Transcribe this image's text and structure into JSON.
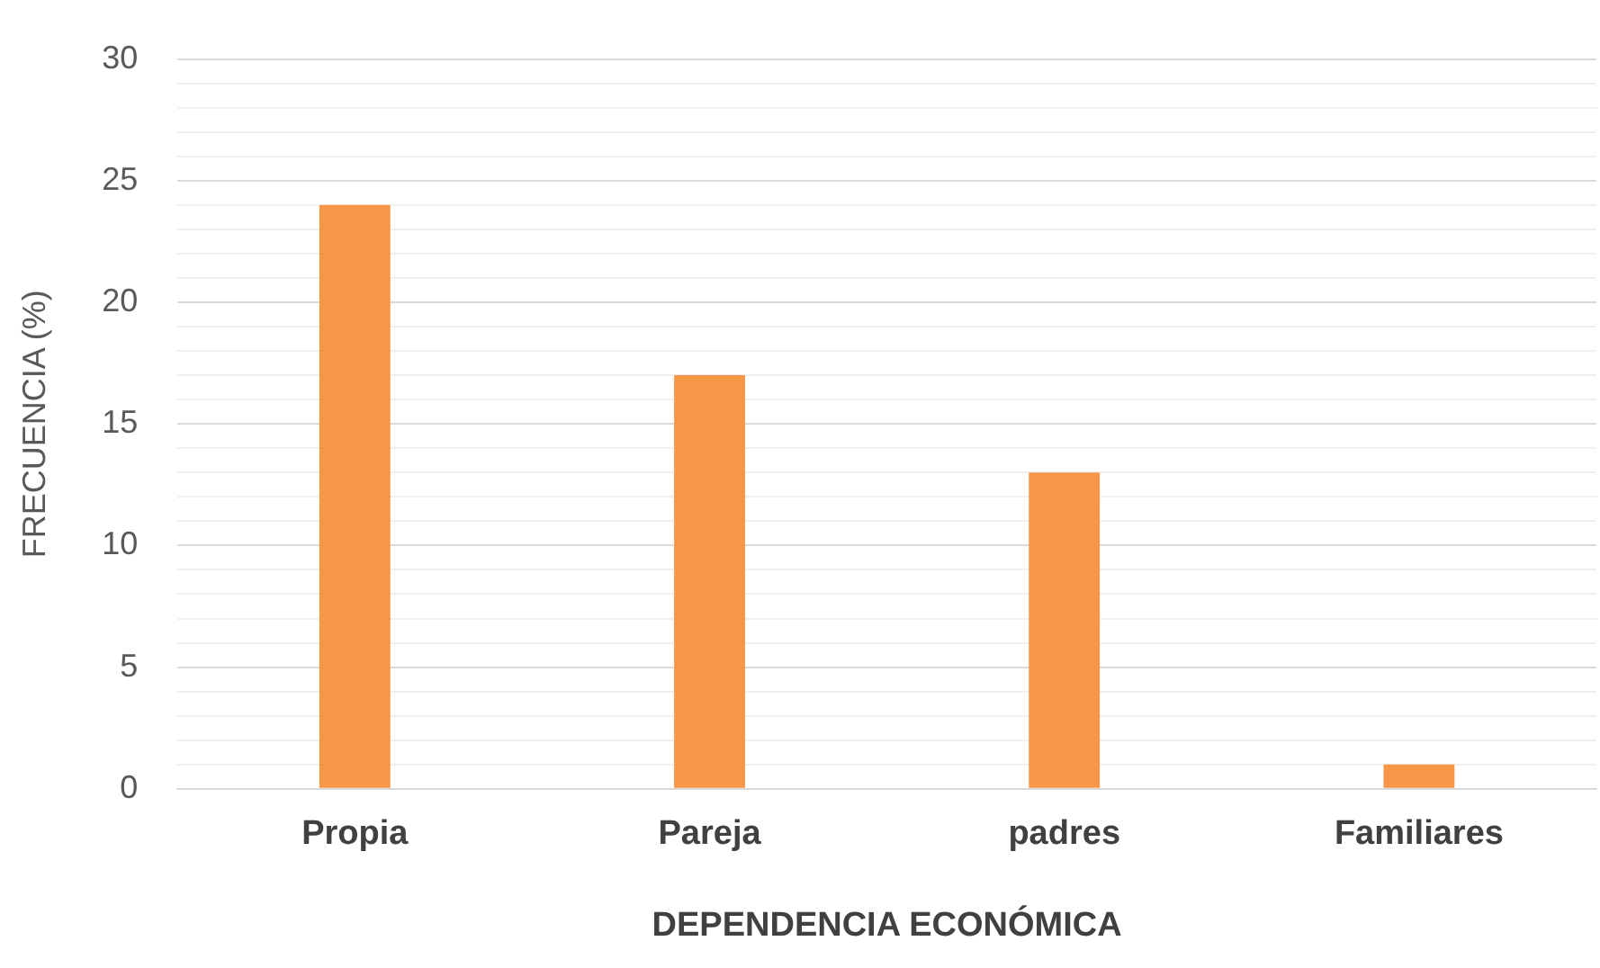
{
  "chart_data": {
    "type": "bar",
    "xlabel": "DEPENDENCIA ECONÓMICA",
    "ylabel": "FRECUENCIA (%)",
    "categories": [
      "Propia",
      "Pareja",
      "padres",
      "Familiares"
    ],
    "values": [
      24,
      17,
      13,
      1
    ],
    "color": "#f79646",
    "ylim": [
      0,
      30
    ],
    "yticks": [
      0,
      {
        "value": 1,
        "label": null
      },
      {
        "value": 2,
        "label": null
      },
      {
        "value": 3,
        "label": null
      },
      {
        "value": 4,
        "label": null
      },
      5,
      {
        "value": 6,
        "label": null
      },
      {
        "value": 7,
        "label": null
      },
      {
        "value": 8,
        "label": null
      },
      {
        "value": 9,
        "label": null
      },
      10,
      {
        "value": 11,
        "label": null
      },
      {
        "value": 12,
        "label": null
      },
      {
        "value": 13,
        "label": null
      },
      {
        "value": 14,
        "label": null
      },
      15,
      {
        "value": 16,
        "label": null
      },
      {
        "value": 17,
        "label": null
      },
      {
        "value": 18,
        "label": null
      },
      {
        "value": 19,
        "label": null
      },
      20,
      {
        "value": 21,
        "label": null
      },
      {
        "value": 22,
        "label": null
      },
      {
        "value": 23,
        "label": null
      },
      {
        "value": 24,
        "label": null
      },
      25,
      {
        "value": 26,
        "label": null
      },
      {
        "value": 27,
        "label": null
      },
      {
        "value": 28,
        "label": null
      },
      {
        "value": 29,
        "label": null
      },
      30
    ],
    "grid": "y"
  }
}
